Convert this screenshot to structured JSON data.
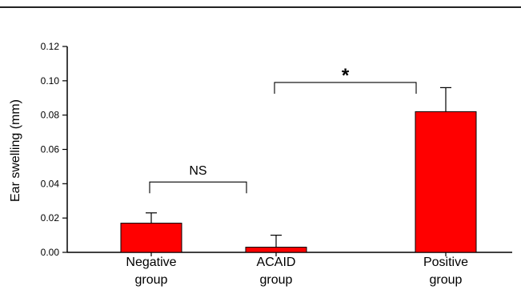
{
  "chart_data": {
    "type": "bar",
    "categories": [
      [
        "Negative",
        "group"
      ],
      [
        "ACAID",
        "group"
      ],
      [
        "Positive",
        "group"
      ]
    ],
    "values": [
      0.017,
      0.003,
      0.082
    ],
    "errors": [
      0.006,
      0.007,
      0.014
    ],
    "ylabel": "Ear swelling (mm)",
    "ylim": [
      0,
      0.12
    ],
    "yticks": [
      "0.00",
      "0.02",
      "0.04",
      "0.06",
      "0.08",
      "0.10",
      "0.12"
    ],
    "grid": false,
    "bar_color": "#ff0000",
    "annotations": [
      {
        "label": "NS",
        "from": 0,
        "to": 1,
        "y": 0.041
      },
      {
        "label": "*",
        "from": 1,
        "to": 2,
        "y": 0.099
      }
    ]
  }
}
